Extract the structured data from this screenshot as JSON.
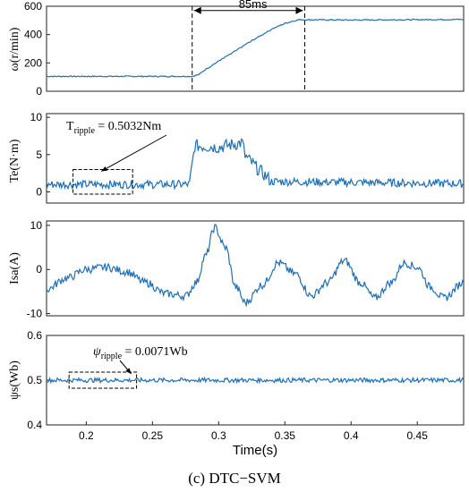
{
  "caption": "(c) DTC−SVM",
  "colors": {
    "trace": "#1f6fb5",
    "axis": "#222222"
  },
  "chart_data": [
    {
      "type": "line",
      "panel": "speed",
      "ylabel": "ω(r/min)",
      "ylim": [
        0,
        600
      ],
      "yticks": [
        "0",
        "200",
        "400",
        "600"
      ],
      "xlim": [
        0.17,
        0.485
      ],
      "series": [
        {
          "x": [
            0.17,
            0.28,
            0.285,
            0.29,
            0.3,
            0.31,
            0.32,
            0.33,
            0.34,
            0.35,
            0.36,
            0.365,
            0.4,
            0.485
          ],
          "y": [
            105,
            105,
            118,
            155,
            215,
            270,
            330,
            385,
            440,
            480,
            505,
            505,
            503,
            507
          ]
        }
      ],
      "annotations": [
        {
          "text": "85ms",
          "x1": 0.28,
          "x2": 0.365,
          "y": 570
        }
      ]
    },
    {
      "type": "line",
      "panel": "torque",
      "ylabel": "Te(N·m)",
      "ylim": [
        -1.5,
        10.5
      ],
      "yticks": [
        "0",
        "5",
        "10"
      ],
      "xlim": [
        0.17,
        0.485
      ],
      "series": [
        {
          "x": [
            0.17,
            0.278,
            0.282,
            0.3,
            0.318,
            0.32,
            0.33,
            0.34,
            0.485
          ],
          "y": [
            1.0,
            1.0,
            6.2,
            6.0,
            6.6,
            4.8,
            3.0,
            1.4,
            1.1
          ]
        }
      ],
      "annotations": [
        {
          "text": "Tripple = 0.5032Nm",
          "main": "T",
          "sub": "ripple",
          "value": " = 0.5032Nm",
          "x1": 0.19,
          "x2": 0.235,
          "y1": -0.3,
          "y2": 3.0
        }
      ]
    },
    {
      "type": "line",
      "panel": "current",
      "ylabel": "Isa(A)",
      "ylim": [
        -10.5,
        11
      ],
      "yticks": [
        "-10",
        "0",
        "10"
      ],
      "xlim": [
        0.17,
        0.485
      ],
      "series": [
        {
          "x": [
            0.17,
            0.185,
            0.2,
            0.215,
            0.23,
            0.245,
            0.26,
            0.275,
            0.283,
            0.29,
            0.297,
            0.305,
            0.313,
            0.32,
            0.333,
            0.345,
            0.358,
            0.37,
            0.382,
            0.395,
            0.407,
            0.418,
            0.43,
            0.44,
            0.45,
            0.46,
            0.47,
            0.485
          ],
          "y": [
            -4.5,
            -2.0,
            0.0,
            0.5,
            -0.5,
            -3.0,
            -5.5,
            -6.0,
            -3.0,
            3.0,
            9.5,
            5.0,
            -4.0,
            -7.5,
            -3.5,
            1.5,
            -1.0,
            -6.0,
            -3.0,
            2.0,
            -3.0,
            -6.5,
            -3.0,
            1.5,
            0.5,
            -4.0,
            -6.5,
            -3.0
          ]
        }
      ]
    },
    {
      "type": "line",
      "panel": "flux",
      "ylabel": "ψs(Wb)",
      "ylim": [
        0.4,
        0.6
      ],
      "yticks": [
        "0.4",
        "0.5",
        "0.6"
      ],
      "xlim": [
        0.17,
        0.485
      ],
      "xlabel": "Time(s)",
      "xticks": [
        "0.2",
        "0.25",
        "0.3",
        "0.35",
        "0.4",
        "0.45"
      ],
      "series": [
        {
          "x": [
            0.17,
            0.485
          ],
          "y": [
            0.5,
            0.5
          ]
        }
      ],
      "annotations": [
        {
          "text": "ψripple = 0.0071Wb",
          "main": "ψ",
          "sub": "ripple",
          "value": " = 0.0071Wb",
          "x1": 0.187,
          "x2": 0.238,
          "y1": 0.482,
          "y2": 0.518
        }
      ]
    }
  ]
}
